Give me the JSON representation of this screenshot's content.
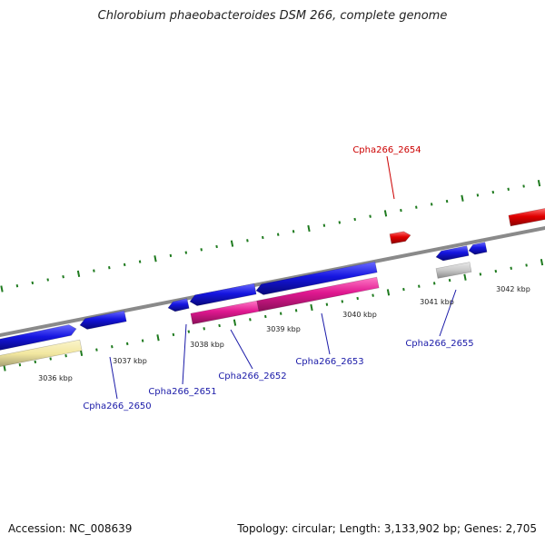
{
  "title": "Chlorobium phaeobacteroides DSM 266, complete genome",
  "footer": {
    "accession": "Accession: NC_008639",
    "summary": "Topology: circular; Length: 3,133,902 bp; Genes: 2,705"
  },
  "colors": {
    "backbone": "#8a8a8a",
    "ticks": "#1e7a1e",
    "forward_gene": "#e00000",
    "reverse_gene": "#1515e0",
    "rna_gene": "#e01890",
    "pseudo_gene": "#c8c8c8",
    "other_gene": "#f2e7a0",
    "label_red": "#cc0000",
    "label_blue": "#1a1aa8"
  },
  "axis_labels": [
    "3036 kbp",
    "3037 kbp",
    "3038 kbp",
    "3039 kbp",
    "3040 kbp",
    "3041 kbp",
    "3042 kbp"
  ],
  "gene_labels": [
    "Cpha266_2650",
    "Cpha266_2651",
    "Cpha266_2652",
    "Cpha266_2653",
    "Cpha266_2654",
    "Cpha266_2655"
  ]
}
